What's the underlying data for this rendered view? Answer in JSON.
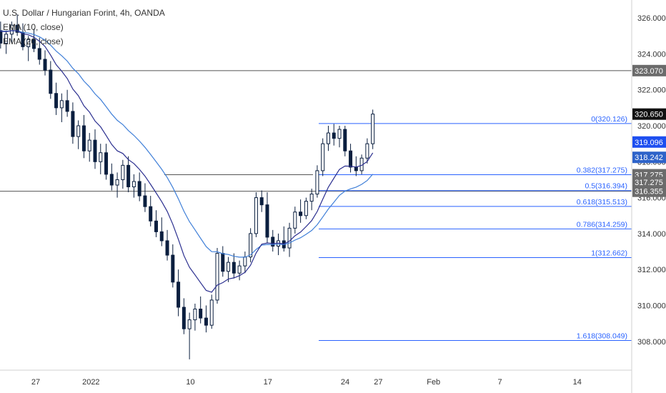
{
  "legend": {
    "title": "U.S. Dollar / Hungarian Forint, 4h, OANDA",
    "ema10": "EMA (10, close)",
    "ema20": "EMA (20, close)"
  },
  "colors": {
    "background": "#ffffff",
    "candle_body": "#0b1f3f",
    "ema10": "#2a2e8f",
    "ema20": "#3f7fd8",
    "fib_line": "#2962ff",
    "hline": "#555555",
    "axis_text": "#333333",
    "tag_gray": "#6b6b6b",
    "tag_black": "#111111",
    "tag_blue": "#1e4ff0",
    "tag_lightblue": "#2e63c9"
  },
  "chart_data": {
    "type": "candlestick",
    "title": "U.S. Dollar / Hungarian Forint, 4h, OANDA",
    "xlabel": "",
    "ylabel": "",
    "ylim": [
      306.4,
      327.0
    ],
    "xlim": [
      19.5,
      52.0
    ],
    "y_ticks": [
      308.0,
      310.0,
      312.0,
      314.0,
      316.0,
      318.0,
      320.0,
      322.0,
      324.0,
      326.0
    ],
    "y_tick_labels": [
      "308.000",
      "310.000",
      "312.000",
      "314.000",
      "316.000",
      "318.000",
      "320.000",
      "322.000",
      "324.000",
      "326.000"
    ],
    "x_ticks": [
      {
        "x": 27,
        "label": "27"
      },
      {
        "x": 32,
        "label": "2022"
      },
      {
        "x": 41,
        "label": "10"
      },
      {
        "x": 48,
        "label": "17"
      },
      {
        "x": 55,
        "label": "24"
      },
      {
        "x": 58,
        "label": "27"
      },
      {
        "x": 63,
        "label": "Feb"
      },
      {
        "x": 69,
        "label": "7"
      },
      {
        "x": 76,
        "label": "14"
      }
    ],
    "series": [
      {
        "name": "U.S. Dollar / Hungarian Forint",
        "ohlc": [
          [
            325.8,
            326.4,
            324.9,
            325.2
          ],
          [
            325.2,
            325.9,
            324.6,
            325.5
          ],
          [
            325.5,
            326.2,
            325.0,
            325.9
          ],
          [
            325.9,
            326.5,
            325.3,
            325.6
          ],
          [
            325.6,
            326.1,
            324.8,
            325.0
          ],
          [
            325.0,
            325.7,
            324.5,
            325.4
          ],
          [
            325.4,
            326.0,
            324.9,
            325.8
          ],
          [
            325.8,
            326.3,
            325.2,
            325.3
          ],
          [
            325.3,
            325.8,
            324.3,
            324.6
          ],
          [
            324.6,
            325.3,
            324.0,
            325.1
          ],
          [
            325.1,
            325.8,
            324.6,
            325.6
          ],
          [
            325.6,
            326.2,
            325.0,
            325.2
          ],
          [
            325.2,
            325.7,
            324.2,
            324.4
          ],
          [
            324.4,
            325.0,
            323.6,
            324.8
          ],
          [
            324.8,
            325.4,
            324.1,
            324.3
          ],
          [
            324.3,
            324.9,
            323.4,
            323.7
          ],
          [
            323.7,
            324.2,
            322.8,
            323.1
          ],
          [
            323.1,
            323.6,
            321.5,
            321.8
          ],
          [
            321.8,
            322.4,
            320.6,
            321.0
          ],
          [
            321.0,
            321.8,
            320.2,
            321.4
          ],
          [
            321.4,
            322.0,
            320.5,
            320.8
          ],
          [
            320.8,
            321.3,
            319.0,
            319.4
          ],
          [
            319.4,
            320.3,
            318.7,
            320.0
          ],
          [
            320.0,
            320.6,
            318.2,
            318.6
          ],
          [
            318.6,
            319.6,
            318.0,
            319.2
          ],
          [
            319.2,
            319.8,
            317.6,
            318.0
          ],
          [
            318.0,
            319.0,
            317.3,
            318.5
          ],
          [
            318.5,
            319.0,
            317.0,
            317.3
          ],
          [
            317.3,
            317.9,
            316.4,
            316.7
          ],
          [
            316.7,
            317.4,
            316.0,
            317.0
          ],
          [
            317.0,
            318.1,
            316.5,
            317.8
          ],
          [
            317.8,
            318.3,
            316.3,
            316.6
          ],
          [
            316.6,
            317.3,
            316.0,
            316.9
          ],
          [
            316.9,
            317.4,
            315.8,
            316.1
          ],
          [
            316.1,
            316.8,
            315.2,
            315.5
          ],
          [
            315.5,
            316.1,
            314.4,
            314.7
          ],
          [
            314.7,
            315.3,
            313.8,
            314.1
          ],
          [
            314.1,
            314.9,
            313.3,
            313.6
          ],
          [
            313.6,
            314.2,
            312.5,
            312.8
          ],
          [
            312.8,
            313.4,
            311.0,
            311.3
          ],
          [
            311.3,
            312.0,
            309.4,
            309.9
          ],
          [
            309.9,
            310.4,
            308.4,
            308.7
          ],
          [
            308.7,
            309.6,
            307.0,
            309.2
          ],
          [
            309.2,
            310.1,
            308.6,
            309.8
          ],
          [
            309.8,
            310.5,
            309.0,
            309.3
          ],
          [
            309.3,
            310.0,
            308.5,
            308.9
          ],
          [
            308.9,
            310.6,
            308.7,
            310.3
          ],
          [
            310.3,
            313.2,
            310.1,
            312.9
          ],
          [
            312.9,
            313.3,
            311.6,
            311.9
          ],
          [
            311.9,
            312.7,
            311.3,
            312.4
          ],
          [
            312.4,
            312.9,
            311.5,
            311.8
          ],
          [
            311.8,
            312.5,
            311.4,
            312.2
          ],
          [
            312.2,
            313.0,
            311.8,
            312.7
          ],
          [
            312.7,
            314.3,
            312.4,
            314.0
          ],
          [
            314.0,
            316.3,
            313.8,
            316.0
          ],
          [
            316.0,
            316.4,
            315.2,
            315.6
          ],
          [
            315.6,
            316.3,
            313.5,
            313.8
          ],
          [
            313.8,
            314.2,
            313.0,
            313.3
          ],
          [
            313.3,
            314.0,
            312.8,
            313.6
          ],
          [
            313.6,
            314.4,
            313.0,
            313.2
          ],
          [
            313.2,
            314.6,
            312.7,
            314.3
          ],
          [
            314.3,
            315.5,
            314.0,
            315.2
          ],
          [
            315.2,
            315.9,
            314.6,
            315.0
          ],
          [
            315.0,
            316.0,
            314.8,
            315.8
          ],
          [
            315.8,
            316.5,
            315.3,
            316.2
          ],
          [
            316.2,
            317.8,
            316.0,
            317.5
          ],
          [
            317.5,
            319.3,
            317.2,
            319.0
          ],
          [
            319.0,
            320.0,
            318.6,
            319.6
          ],
          [
            319.6,
            320.1,
            318.9,
            319.3
          ],
          [
            319.3,
            320.0,
            318.8,
            319.8
          ],
          [
            319.8,
            320.0,
            318.3,
            318.6
          ],
          [
            318.6,
            319.0,
            317.4,
            317.7
          ],
          [
            317.7,
            318.3,
            317.2,
            317.5
          ],
          [
            317.5,
            318.4,
            317.3,
            318.2
          ],
          [
            318.2,
            319.3,
            317.9,
            319.0
          ],
          [
            319.0,
            320.9,
            318.7,
            320.65
          ]
        ]
      },
      {
        "name": "EMA (10, close)"
      },
      {
        "name": "EMA (20, close)"
      }
    ],
    "horizontal_lines": [
      {
        "value": 323.07
      },
      {
        "value": 316.355
      },
      {
        "value": 317.275
      }
    ],
    "fibonacci": [
      {
        "label": "0(320.126)",
        "value": 320.126
      },
      {
        "label": "0.382(317.275)",
        "value": 317.275
      },
      {
        "label": "0.5(316.394)",
        "value": 316.394
      },
      {
        "label": "0.618(315.513)",
        "value": 315.513
      },
      {
        "label": "0.786(314.259)",
        "value": 314.259
      },
      {
        "label": "1(312.662)",
        "value": 312.662
      },
      {
        "label": "1.618(308.049)",
        "value": 308.049
      }
    ],
    "price_tags": [
      {
        "label": "323.070",
        "value": 323.07,
        "style": "gray"
      },
      {
        "label": "320.650",
        "value": 320.65,
        "style": "black"
      },
      {
        "label": "319.096",
        "value": 319.096,
        "style": "blue"
      },
      {
        "label": "318.242",
        "value": 318.242,
        "style": "lightblue"
      },
      {
        "label": "317.275",
        "value": 317.275,
        "style": "gray"
      },
      {
        "label": "317.275",
        "value": 316.85,
        "style": "gray"
      },
      {
        "label": "316.355",
        "value": 316.355,
        "style": "gray"
      }
    ]
  }
}
